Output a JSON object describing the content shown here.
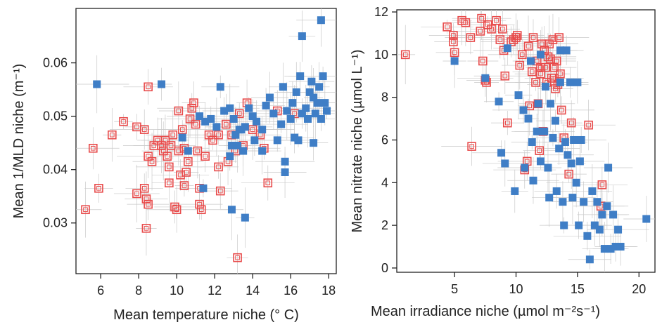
{
  "colors": {
    "ocean": "#3f7ec6",
    "coastal": "#e84b4b",
    "errorbar": "#c9c9c9"
  },
  "chart_data": [
    {
      "type": "scatter",
      "xlabel": "Mean temperature niche (° C)",
      "ylabel": "Mean 1/MLD niche (m⁻¹)",
      "xlim": [
        4.7,
        18.4
      ],
      "ylim": [
        0.0205,
        0.0702
      ],
      "xticks": [
        6,
        8,
        10,
        12,
        14,
        16,
        18
      ],
      "yticks": [
        0.03,
        0.04,
        0.05,
        0.06
      ],
      "x_tick_labels": [
        "6",
        "8",
        "10",
        "12",
        "14",
        "16",
        "18"
      ],
      "y_tick_labels": [
        "0.03",
        "0.04",
        "0.05",
        "0.06"
      ],
      "grid": false,
      "series": [
        {
          "marker": "filled-square",
          "color": "#3f7ec6",
          "points": [
            [
              5.8,
              0.056
            ],
            [
              9.2,
              0.056
            ],
            [
              11.2,
              0.05
            ],
            [
              11.5,
              0.049
            ],
            [
              11.8,
              0.0495
            ],
            [
              12.1,
              0.048
            ],
            [
              12.3,
              0.0555
            ],
            [
              12.5,
              0.051
            ],
            [
              12.8,
              0.0515
            ],
            [
              13.0,
              0.0495
            ],
            [
              13.1,
              0.0465
            ],
            [
              13.2,
              0.0445
            ],
            [
              13.4,
              0.0475
            ],
            [
              13.5,
              0.0435
            ],
            [
              13.6,
              0.048
            ],
            [
              13.8,
              0.0515
            ],
            [
              14.0,
              0.05
            ],
            [
              14.1,
              0.0455
            ],
            [
              14.2,
              0.049
            ],
            [
              14.5,
              0.0475
            ],
            [
              14.7,
              0.052
            ],
            [
              14.9,
              0.0535
            ],
            [
              15.1,
              0.0505
            ],
            [
              15.3,
              0.0455
            ],
            [
              15.5,
              0.0485
            ],
            [
              15.6,
              0.0555
            ],
            [
              15.8,
              0.051
            ],
            [
              16.0,
              0.0495
            ],
            [
              16.1,
              0.0525
            ],
            [
              16.3,
              0.0545
            ],
            [
              16.5,
              0.0575
            ],
            [
              16.6,
              0.0505
            ],
            [
              16.8,
              0.0515
            ],
            [
              16.9,
              0.0495
            ],
            [
              17.0,
              0.0545
            ],
            [
              17.1,
              0.0565
            ],
            [
              17.2,
              0.0535
            ],
            [
              17.3,
              0.0505
            ],
            [
              17.4,
              0.0525
            ],
            [
              17.5,
              0.0555
            ],
            [
              17.6,
              0.0495
            ],
            [
              17.7,
              0.0575
            ],
            [
              17.8,
              0.0525
            ],
            [
              17.6,
              0.068
            ],
            [
              16.6,
              0.065
            ],
            [
              12.9,
              0.0325
            ],
            [
              13.6,
              0.031
            ],
            [
              15.7,
              0.0395
            ],
            [
              15.7,
              0.0415
            ],
            [
              16.4,
              0.0455
            ],
            [
              17.2,
              0.045
            ],
            [
              12.8,
              0.0425
            ],
            [
              12.9,
              0.0445
            ],
            [
              11.4,
              0.0365
            ],
            [
              10.6,
              0.0435
            ],
            [
              10.3,
              0.046
            ],
            [
              17.9,
              0.051
            ],
            [
              16.2,
              0.046
            ],
            [
              13.3,
              0.0475
            ],
            [
              14.5,
              0.0435
            ]
          ]
        },
        {
          "marker": "open-square",
          "color": "#e84b4b",
          "points": [
            [
              5.2,
              0.0325
            ],
            [
              5.6,
              0.044
            ],
            [
              5.9,
              0.0365
            ],
            [
              6.6,
              0.0465
            ],
            [
              7.2,
              0.049
            ],
            [
              7.9,
              0.048
            ],
            [
              8.3,
              0.0475
            ],
            [
              8.3,
              0.0365
            ],
            [
              8.4,
              0.0345
            ],
            [
              8.5,
              0.0335
            ],
            [
              8.4,
              0.029
            ],
            [
              8.5,
              0.0555
            ],
            [
              8.5,
              0.0425
            ],
            [
              8.7,
              0.0415
            ],
            [
              8.8,
              0.0445
            ],
            [
              9.0,
              0.0455
            ],
            [
              9.2,
              0.0445
            ],
            [
              9.3,
              0.0435
            ],
            [
              9.4,
              0.0455
            ],
            [
              9.5,
              0.0425
            ],
            [
              9.6,
              0.0405
            ],
            [
              9.7,
              0.0445
            ],
            [
              9.8,
              0.0465
            ],
            [
              9.9,
              0.033
            ],
            [
              10.0,
              0.0325
            ],
            [
              10.1,
              0.0435
            ],
            [
              10.1,
              0.051
            ],
            [
              10.3,
              0.0475
            ],
            [
              10.4,
              0.044
            ],
            [
              10.5,
              0.0395
            ],
            [
              10.6,
              0.0415
            ],
            [
              10.7,
              0.0495
            ],
            [
              10.8,
              0.0515
            ],
            [
              10.9,
              0.0525
            ],
            [
              11.0,
              0.0485
            ],
            [
              11.1,
              0.0435
            ],
            [
              11.2,
              0.0335
            ],
            [
              11.3,
              0.0325
            ],
            [
              11.5,
              0.0425
            ],
            [
              11.7,
              0.0465
            ],
            [
              11.9,
              0.0455
            ],
            [
              12.2,
              0.0405
            ],
            [
              12.3,
              0.036
            ],
            [
              12.6,
              0.0485
            ],
            [
              12.7,
              0.0415
            ],
            [
              12.9,
              0.0465
            ],
            [
              13.1,
              0.0435
            ],
            [
              13.3,
              0.0505
            ],
            [
              13.5,
              0.0445
            ],
            [
              13.7,
              0.0525
            ],
            [
              14.0,
              0.0475
            ],
            [
              14.4,
              0.0465
            ],
            [
              14.6,
              0.044
            ],
            [
              14.8,
              0.0375
            ],
            [
              15.3,
              0.051
            ],
            [
              16.2,
              0.0505
            ],
            [
              9.6,
              0.0375
            ],
            [
              10.2,
              0.039
            ],
            [
              10.4,
              0.037
            ],
            [
              13.2,
              0.0235
            ],
            [
              7.9,
              0.0355
            ],
            [
              11.2,
              0.0365
            ],
            [
              12.2,
              0.0465
            ]
          ]
        }
      ]
    },
    {
      "type": "scatter",
      "xlabel": "Mean irradiance niche (µmol m⁻²s⁻¹)",
      "ylabel": "Mean nitrate niche (µmol L⁻¹)",
      "xlim": [
        0.3,
        21.3
      ],
      "ylim": [
        -0.2,
        12.1
      ],
      "xticks": [
        5,
        10,
        15,
        20
      ],
      "yticks": [
        0,
        2,
        4,
        6,
        8,
        10,
        12
      ],
      "x_tick_labels": [
        "5",
        "10",
        "15",
        "20"
      ],
      "y_tick_labels": [
        "0",
        "2",
        "4",
        "6",
        "8",
        "10",
        "12"
      ],
      "grid": false,
      "series": [
        {
          "marker": "filled-square",
          "color": "#3f7ec6",
          "points": [
            [
              5.0,
              9.7
            ],
            [
              7.5,
              8.9
            ],
            [
              8.6,
              7.8
            ],
            [
              8.8,
              5.4
            ],
            [
              9.1,
              4.9
            ],
            [
              9.3,
              10.3
            ],
            [
              9.9,
              3.6
            ],
            [
              10.2,
              8.1
            ],
            [
              10.6,
              7.4
            ],
            [
              10.7,
              4.7
            ],
            [
              11.0,
              7.0
            ],
            [
              11.3,
              5.9
            ],
            [
              11.4,
              4.1
            ],
            [
              11.7,
              6.4
            ],
            [
              11.8,
              7.7
            ],
            [
              12.0,
              5.0
            ],
            [
              12.3,
              6.4
            ],
            [
              12.4,
              8.5
            ],
            [
              12.6,
              4.7
            ],
            [
              12.7,
              3.3
            ],
            [
              12.8,
              7.7
            ],
            [
              13.0,
              6.1
            ],
            [
              13.2,
              6.9
            ],
            [
              13.3,
              3.6
            ],
            [
              13.5,
              5.6
            ],
            [
              13.6,
              8.7
            ],
            [
              13.8,
              3.1
            ],
            [
              13.9,
              2.0
            ],
            [
              14.0,
              5.9
            ],
            [
              14.2,
              5.3
            ],
            [
              14.4,
              8.7
            ],
            [
              14.5,
              4.9
            ],
            [
              14.6,
              3.3
            ],
            [
              14.7,
              6.0
            ],
            [
              14.9,
              4.0
            ],
            [
              15.0,
              8.7
            ],
            [
              15.1,
              2.0
            ],
            [
              15.2,
              5.0
            ],
            [
              15.3,
              6.0
            ],
            [
              15.5,
              3.1
            ],
            [
              15.8,
              1.5
            ],
            [
              16.0,
              0.4
            ],
            [
              16.2,
              3.6
            ],
            [
              16.4,
              2.0
            ],
            [
              16.6,
              3.1
            ],
            [
              16.8,
              1.8
            ],
            [
              17.0,
              2.5
            ],
            [
              17.2,
              0.9
            ],
            [
              17.4,
              2.9
            ],
            [
              17.5,
              4.7
            ],
            [
              17.7,
              0.9
            ],
            [
              17.9,
              2.5
            ],
            [
              18.1,
              1.0
            ],
            [
              18.3,
              1.8
            ],
            [
              18.5,
              1.0
            ],
            [
              20.6,
              2.3
            ],
            [
              14.1,
              10.2
            ],
            [
              12.0,
              10.0
            ],
            [
              13.6,
              10.2
            ],
            [
              11.2,
              9.7
            ]
          ]
        },
        {
          "marker": "open-square",
          "color": "#e84b4b",
          "points": [
            [
              1.0,
              10.0
            ],
            [
              4.4,
              11.3
            ],
            [
              4.9,
              10.9
            ],
            [
              4.9,
              10.6
            ],
            [
              5.0,
              10.1
            ],
            [
              5.6,
              11.6
            ],
            [
              5.9,
              11.5
            ],
            [
              6.3,
              10.8
            ],
            [
              6.4,
              5.7
            ],
            [
              7.1,
              11.1
            ],
            [
              7.2,
              11.7
            ],
            [
              7.3,
              9.7
            ],
            [
              7.5,
              8.8
            ],
            [
              7.6,
              8.7
            ],
            [
              7.7,
              11.4
            ],
            [
              8.0,
              11.2
            ],
            [
              8.4,
              11.6
            ],
            [
              8.7,
              10.7
            ],
            [
              8.9,
              11.2
            ],
            [
              9.0,
              10.2
            ],
            [
              9.1,
              9.0
            ],
            [
              9.3,
              6.8
            ],
            [
              9.6,
              10.6
            ],
            [
              9.8,
              10.7
            ],
            [
              10.1,
              10.9
            ],
            [
              10.3,
              9.5
            ],
            [
              10.5,
              10.0
            ],
            [
              10.7,
              4.6
            ],
            [
              10.9,
              5.0
            ],
            [
              11.0,
              10.4
            ],
            [
              11.1,
              7.6
            ],
            [
              11.3,
              9.2
            ],
            [
              11.4,
              10.8
            ],
            [
              11.6,
              8.7
            ],
            [
              11.7,
              9.7
            ],
            [
              11.8,
              7.7
            ],
            [
              11.9,
              5.5
            ],
            [
              12.0,
              9.1
            ],
            [
              12.1,
              10.5
            ],
            [
              12.2,
              6.4
            ],
            [
              12.3,
              10.2
            ],
            [
              12.4,
              9.4
            ],
            [
              12.5,
              8.7
            ],
            [
              12.6,
              9.9
            ],
            [
              12.7,
              10.5
            ],
            [
              12.8,
              9.8
            ],
            [
              12.9,
              8.9
            ],
            [
              13.0,
              10.7
            ],
            [
              13.1,
              9.4
            ],
            [
              13.2,
              8.4
            ],
            [
              13.3,
              9.7
            ],
            [
              13.4,
              8.6
            ],
            [
              13.5,
              10.8
            ],
            [
              13.6,
              9.1
            ],
            [
              13.7,
              7.4
            ],
            [
              13.9,
              6.1
            ],
            [
              14.3,
              4.4
            ],
            [
              14.5,
              6.8
            ],
            [
              15.9,
              6.7
            ],
            [
              17.0,
              3.9
            ],
            [
              16.9,
              2.9
            ],
            [
              13.1,
              8.9
            ],
            [
              12.0,
              9.4
            ],
            [
              10.0,
              10.8
            ]
          ]
        }
      ]
    }
  ]
}
